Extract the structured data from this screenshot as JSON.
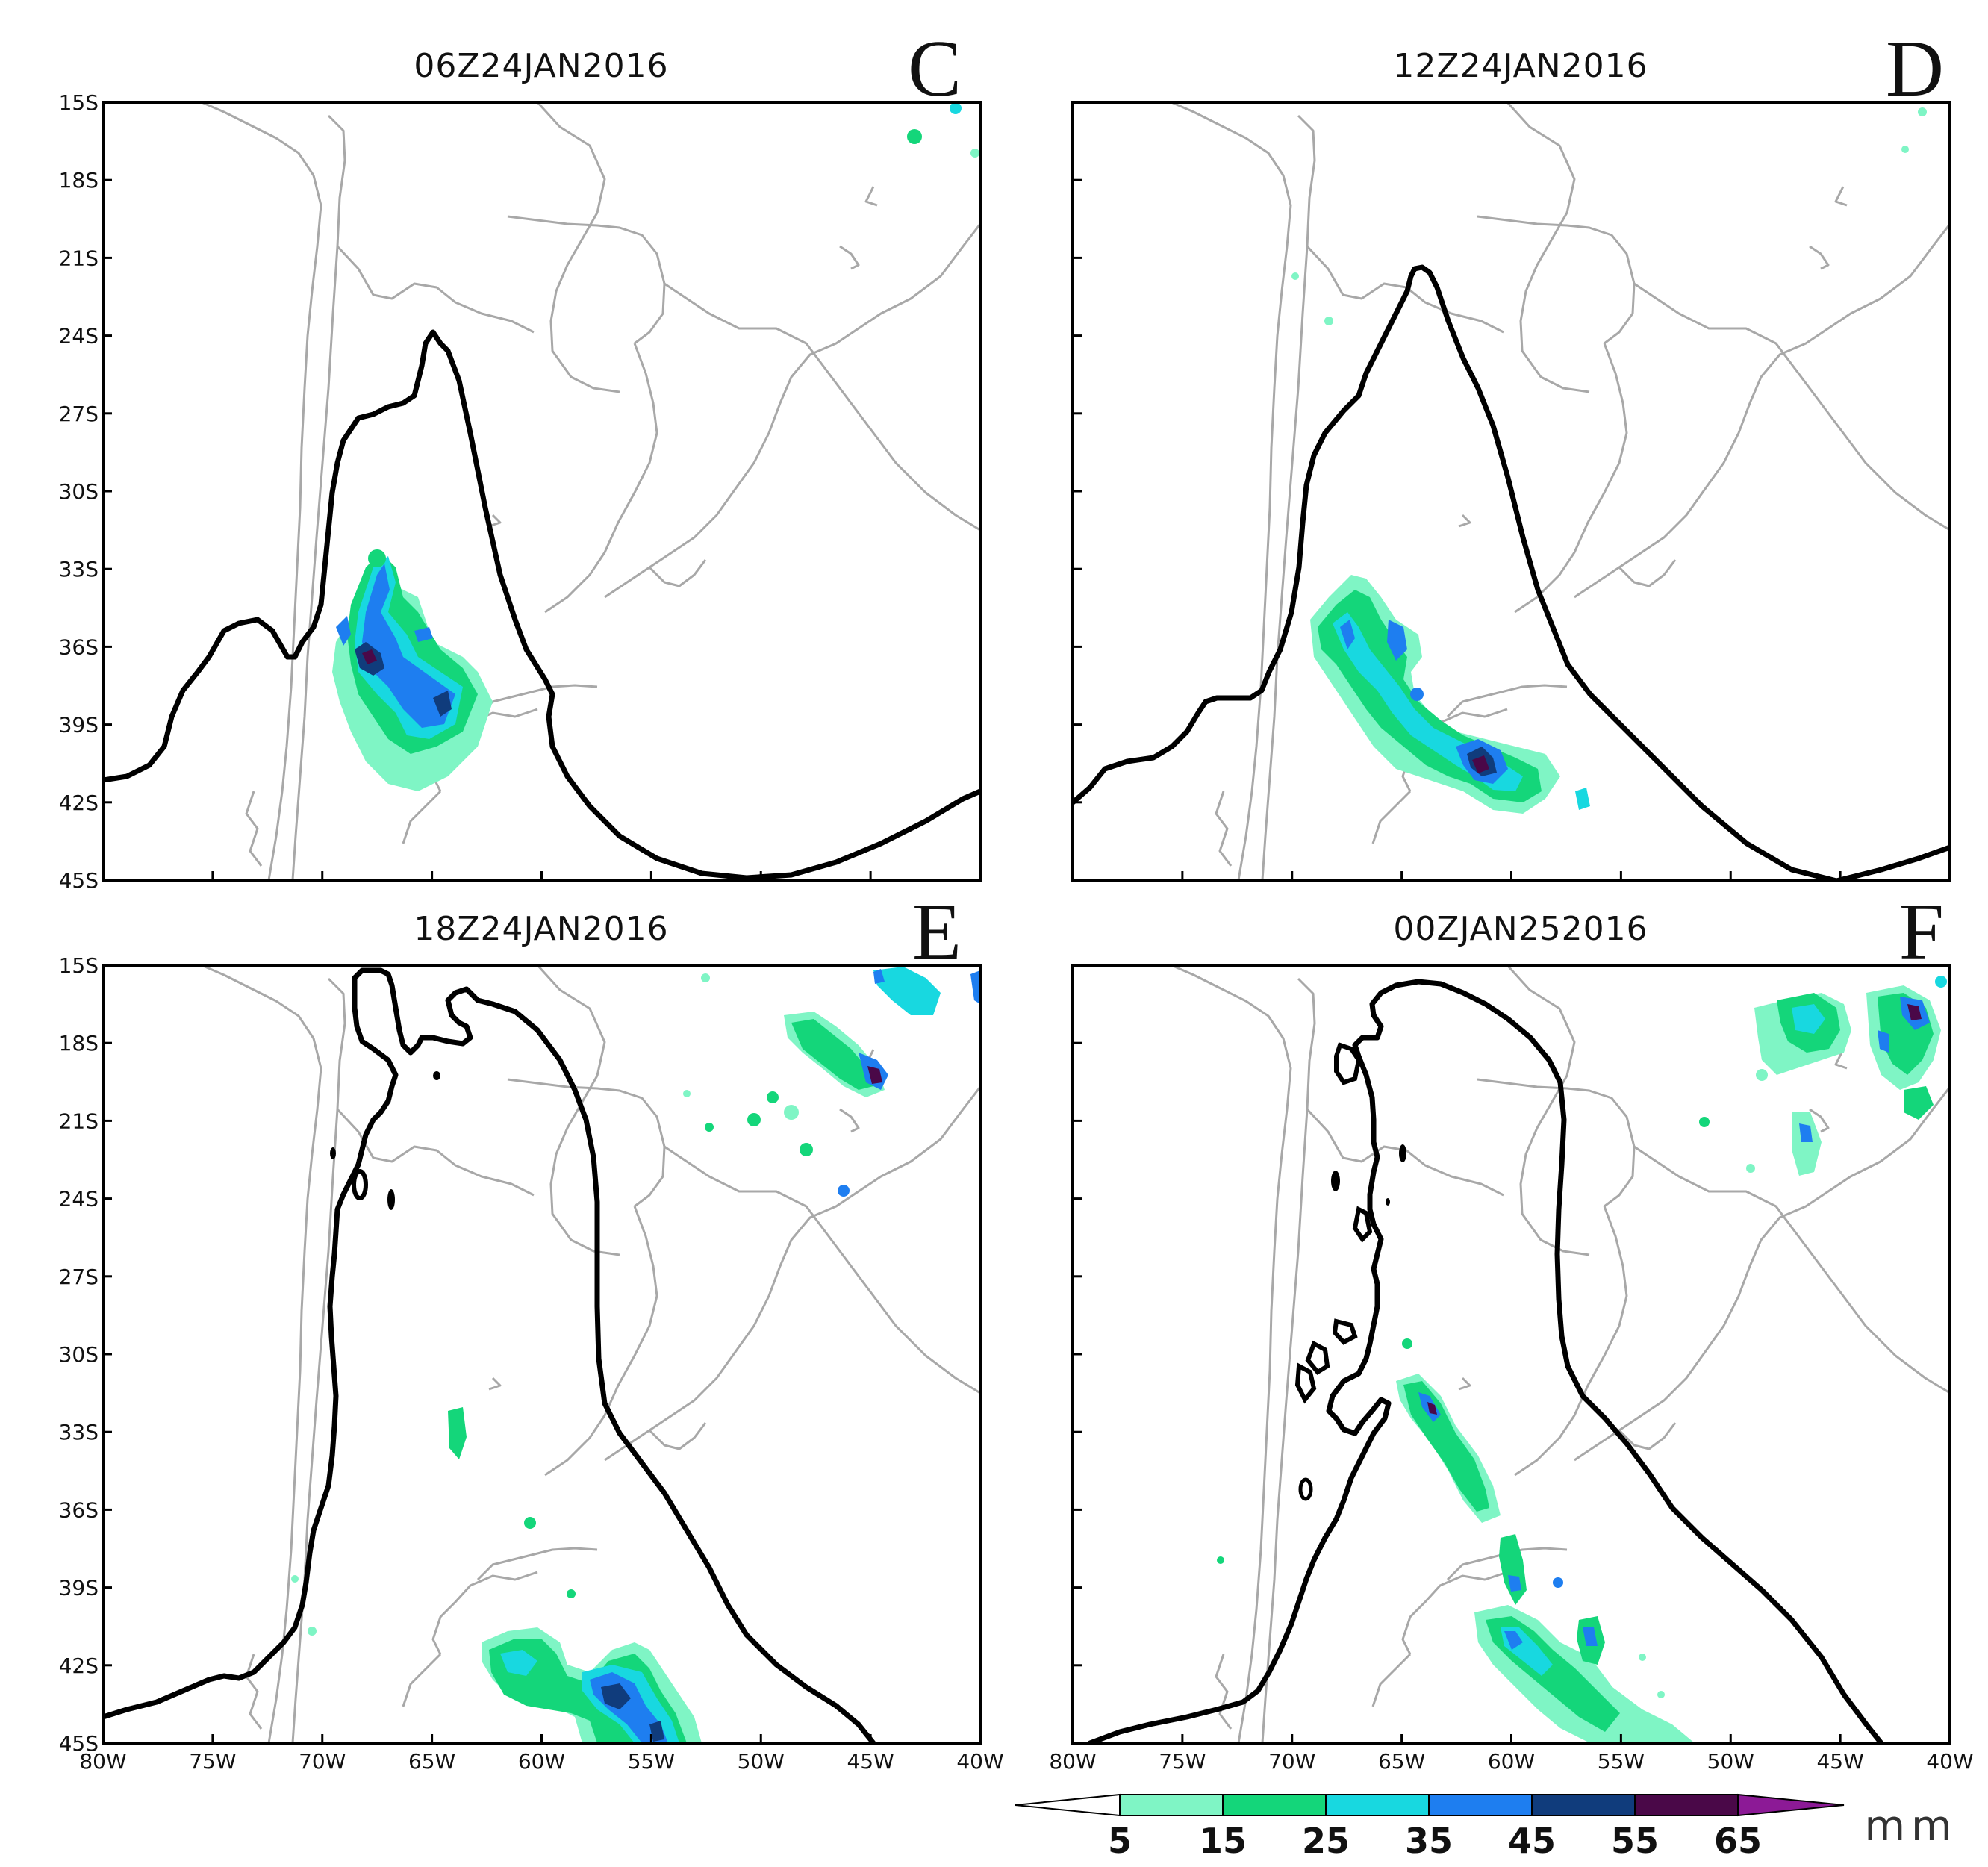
{
  "colors": {
    "c5_15": "#7ff5c5",
    "c15_25": "#14d67a",
    "c25_35": "#18d8e0",
    "c35_45": "#1e7ef0",
    "c45_55": "#103c7c",
    "c55_65": "#4a0848",
    "c65_up": "#8c1a96",
    "front": "#000000",
    "coast": "#a8a8a8"
  },
  "panels": [
    {
      "id": "C",
      "title": "06Z24JAN2016",
      "letter": "C"
    },
    {
      "id": "D",
      "title": "12Z24JAN2016",
      "letter": "D"
    },
    {
      "id": "E",
      "title": "18Z24JAN2016",
      "letter": "E"
    },
    {
      "id": "F",
      "title": "00ZJAN252016",
      "letter": "F"
    }
  ],
  "axes": {
    "lat_labels": [
      "15S",
      "18S",
      "21S",
      "24S",
      "27S",
      "30S",
      "33S",
      "36S",
      "39S",
      "42S",
      "45S"
    ],
    "lon_labels": [
      "80W",
      "75W",
      "70W",
      "65W",
      "60W",
      "55W",
      "50W",
      "45W",
      "40W"
    ]
  },
  "colorbar": {
    "ticks": [
      "5",
      "15",
      "25",
      "35",
      "45",
      "55",
      "65"
    ],
    "unit": "mm"
  }
}
